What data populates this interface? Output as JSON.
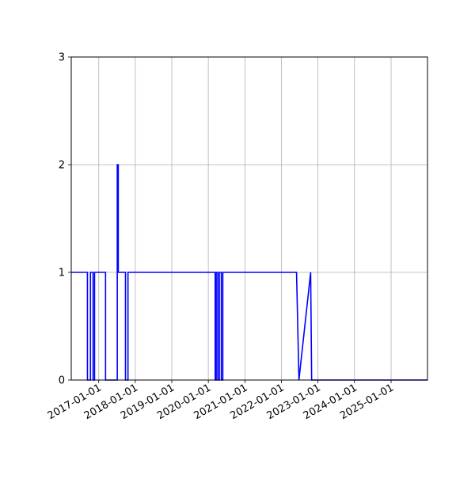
{
  "chart_data": {
    "type": "line",
    "title": "",
    "xlabel": "",
    "ylabel": "",
    "x_axis_type": "date",
    "xlim": [
      "2016-04-01",
      "2025-12-31"
    ],
    "ylim": [
      0,
      3
    ],
    "grid": true,
    "legend": "none",
    "x_ticks": [
      "2017-01-01",
      "2018-01-01",
      "2019-01-01",
      "2020-01-01",
      "2021-01-01",
      "2022-01-01",
      "2023-01-01",
      "2024-01-01",
      "2025-01-01"
    ],
    "y_ticks": [
      0,
      1,
      2,
      3
    ],
    "series": [
      {
        "color": "#0000ff",
        "points": [
          {
            "x": "2016-04-01",
            "y": 1
          },
          {
            "x": "2016-09-10",
            "y": 1
          },
          {
            "x": "2016-09-10",
            "y": 0
          },
          {
            "x": "2016-10-10",
            "y": 0
          },
          {
            "x": "2016-10-10",
            "y": 1
          },
          {
            "x": "2016-11-05",
            "y": 1
          },
          {
            "x": "2016-11-05",
            "y": 0
          },
          {
            "x": "2016-11-20",
            "y": 0
          },
          {
            "x": "2016-11-20",
            "y": 1
          },
          {
            "x": "2017-03-10",
            "y": 1
          },
          {
            "x": "2017-03-10",
            "y": 0
          },
          {
            "x": "2017-07-05",
            "y": 0
          },
          {
            "x": "2017-07-05",
            "y": 2
          },
          {
            "x": "2017-07-15",
            "y": 2
          },
          {
            "x": "2017-07-15",
            "y": 1
          },
          {
            "x": "2017-09-25",
            "y": 1
          },
          {
            "x": "2017-09-25",
            "y": 0
          },
          {
            "x": "2017-10-20",
            "y": 0
          },
          {
            "x": "2017-10-20",
            "y": 1
          },
          {
            "x": "2020-03-10",
            "y": 1
          },
          {
            "x": "2020-03-10",
            "y": 0
          },
          {
            "x": "2020-03-20",
            "y": 0
          },
          {
            "x": "2020-03-20",
            "y": 1
          },
          {
            "x": "2020-04-05",
            "y": 1
          },
          {
            "x": "2020-04-05",
            "y": 0
          },
          {
            "x": "2020-04-20",
            "y": 0
          },
          {
            "x": "2020-04-20",
            "y": 1
          },
          {
            "x": "2020-05-10",
            "y": 1
          },
          {
            "x": "2020-05-10",
            "y": 0
          },
          {
            "x": "2020-05-25",
            "y": 0
          },
          {
            "x": "2020-05-25",
            "y": 1
          },
          {
            "x": "2022-06-01",
            "y": 1
          },
          {
            "x": "2022-06-25",
            "y": 0
          },
          {
            "x": "2022-10-20",
            "y": 1
          },
          {
            "x": "2022-10-30",
            "y": 0
          },
          {
            "x": "2025-12-31",
            "y": 0
          }
        ]
      }
    ]
  }
}
